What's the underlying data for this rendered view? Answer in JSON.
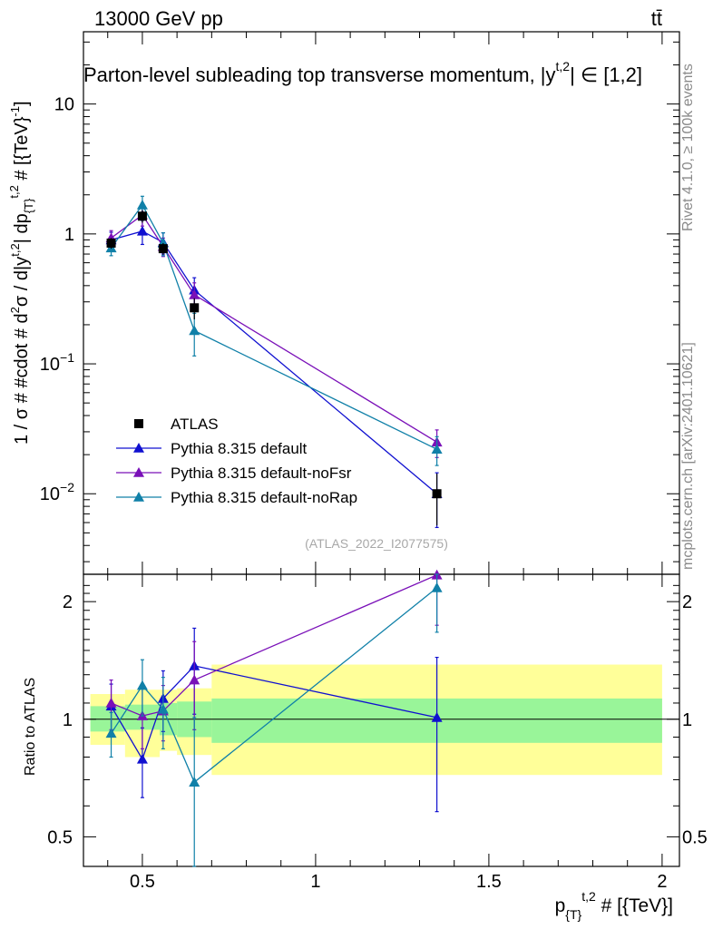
{
  "header": {
    "energy": "13000 GeV pp",
    "process": "tt̄"
  },
  "side": {
    "rivet": "Rivet 4.1.0, ≥ 100k events",
    "mcplots": "mcplots.cern.ch [arXiv:2401.10621]"
  },
  "ref_tag": "(ATLAS_2022_I2077575)",
  "chart_data": {
    "type": "scatter",
    "title": "Parton-level subleading top transverse momentum, |y^{t,2}| ∈ [1,2]",
    "title_parts": {
      "main": "Parton-level subleading top transverse momentum, |",
      "sup": "t,2",
      "base": "y",
      "tail": "| ∈ [1,2]"
    },
    "xlabel": "p_{T}^{t,2} # [{TeV}]",
    "xlabel_parts": {
      "p": "p",
      "sub": "{T}",
      "sup": "t,2",
      "rest": " # [{TeV}]"
    },
    "ylabel": "1 / σ # #cdot # d²σ / d|y^{t,2}| dp_{T}^{t,2} # [{TeV}^{-1}]",
    "ylabel_parts": {
      "a": "1 / σ # #cdot # d",
      "a_sup": "2",
      "b": "σ / d|y",
      "b_sup": "t,2",
      "c": "| dp",
      "c_sub": "{T}",
      "c_sup": "t,2",
      "d": " # [{TeV}",
      "d_sup": "-1",
      "e": "]"
    },
    "ratio_ylabel": "Ratio to ATLAS",
    "xlim": [
      0.33,
      2.05
    ],
    "ylim": [
      0.0024,
      36
    ],
    "ratio_ylim": [
      0.42,
      2.35
    ],
    "x_ticks": [
      0.5,
      1,
      1.5,
      2
    ],
    "x_tick_labels": [
      "0.5",
      "1",
      "1.5",
      "2"
    ],
    "y_ticks": [
      0.01,
      0.1,
      1,
      10
    ],
    "y_tick_labels": [
      {
        "base": "10",
        "exp": "−2"
      },
      {
        "base": "10",
        "exp": "−1"
      },
      {
        "base": "1",
        "exp": ""
      },
      {
        "base": "10",
        "exp": ""
      }
    ],
    "ratio_ticks": [
      0.5,
      1,
      2
    ],
    "ratio_tick_labels": [
      "0.5",
      "1",
      "2"
    ],
    "bins": [
      [
        0.35,
        0.45
      ],
      [
        0.45,
        0.55
      ],
      [
        0.55,
        0.6
      ],
      [
        0.6,
        0.7
      ],
      [
        0.7,
        2.0
      ]
    ],
    "data": {
      "name": "ATLAS",
      "color": "#000000",
      "x": [
        0.41,
        0.5,
        0.56,
        0.65,
        1.35
      ],
      "y": [
        0.85,
        1.37,
        0.77,
        0.27,
        0.01
      ],
      "err_lo": [
        0.08,
        0.15,
        0.08,
        0.05,
        0.0043
      ],
      "err_hi": [
        0.08,
        0.15,
        0.08,
        0.05,
        0.0043
      ],
      "ratio_band_1sigma": [
        [
          0.93,
          1.08
        ],
        [
          0.94,
          1.09
        ],
        [
          0.91,
          1.1
        ],
        [
          0.9,
          1.11
        ],
        [
          0.87,
          1.13
        ]
      ],
      "ratio_band_2sigma": [
        [
          0.86,
          1.16
        ],
        [
          0.8,
          1.19
        ],
        [
          0.83,
          1.19
        ],
        [
          0.81,
          1.2
        ],
        [
          0.72,
          1.38
        ]
      ]
    },
    "series": [
      {
        "name": "Pythia 8.315 default",
        "color": "#1010d0",
        "x": [
          0.41,
          0.5,
          0.56,
          0.65,
          1.35
        ],
        "y": [
          0.9,
          1.05,
          0.86,
          0.37,
          0.01
        ],
        "err": [
          0.13,
          0.22,
          0.16,
          0.09,
          0.0045
        ],
        "ratio": [
          1.08,
          0.79,
          1.13,
          1.37,
          1.01
        ],
        "ratio_err": [
          0.15,
          0.16,
          0.2,
          0.34,
          0.43
        ]
      },
      {
        "name": "Pythia 8.315 default-noFsr",
        "color": "#7a10b8",
        "x": [
          0.41,
          0.5,
          0.56,
          0.65,
          1.35
        ],
        "y": [
          0.93,
          1.4,
          0.8,
          0.34,
          0.025
        ],
        "err": [
          0.13,
          0.25,
          0.13,
          0.08,
          0.006
        ],
        "ratio": [
          1.1,
          1.02,
          1.05,
          1.26,
          2.34
        ],
        "ratio_err": [
          0.16,
          0.18,
          0.17,
          0.32,
          0.6
        ]
      },
      {
        "name": "Pythia 8.315 default-noRap",
        "color": "#1080a8",
        "x": [
          0.41,
          0.5,
          0.56,
          0.65,
          1.35
        ],
        "y": [
          0.78,
          1.67,
          0.85,
          0.18,
          0.022
        ],
        "err": [
          0.1,
          0.28,
          0.17,
          0.065,
          0.0055
        ],
        "ratio": [
          0.92,
          1.22,
          1.06,
          0.69,
          2.17
        ],
        "ratio_err": [
          0.12,
          0.2,
          0.22,
          0.32,
          0.5
        ]
      }
    ],
    "legend": {
      "placement": "middle-left"
    }
  }
}
